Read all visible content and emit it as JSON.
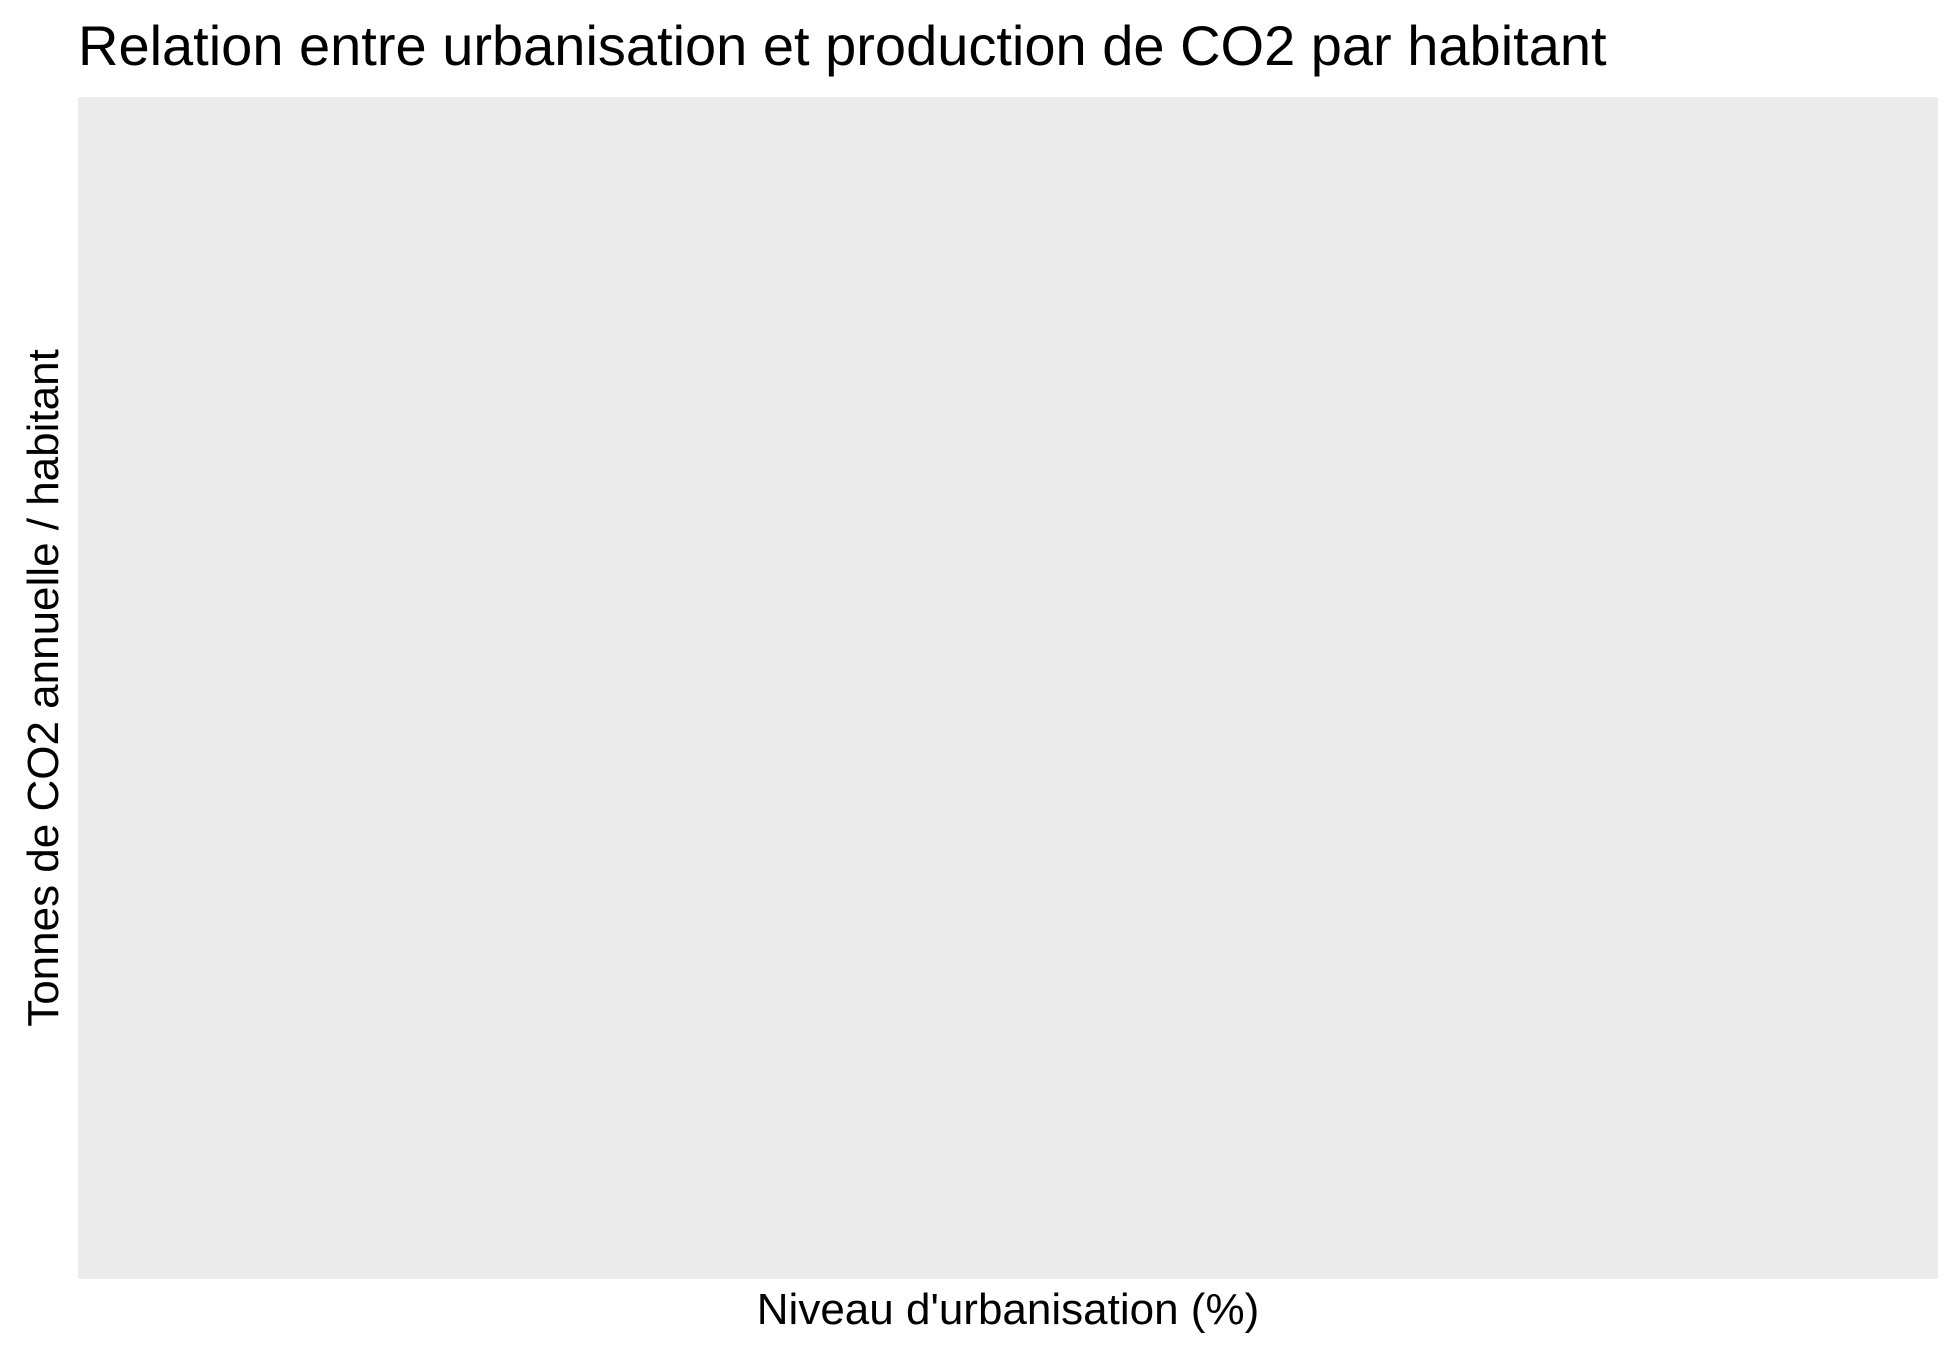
{
  "chart_data": {
    "type": "scatter",
    "title": "Relation entre urbanisation et production de CO2 par habitant",
    "xlabel": "Niveau d'urbanisation (%)",
    "ylabel": "Tonnes de CO2 annuelle / habitant",
    "series": [],
    "grid": false,
    "legend": "none",
    "colors": {
      "panel_background": "#EBEBEB",
      "page_background": "#FFFFFF",
      "text": "#000000"
    }
  }
}
